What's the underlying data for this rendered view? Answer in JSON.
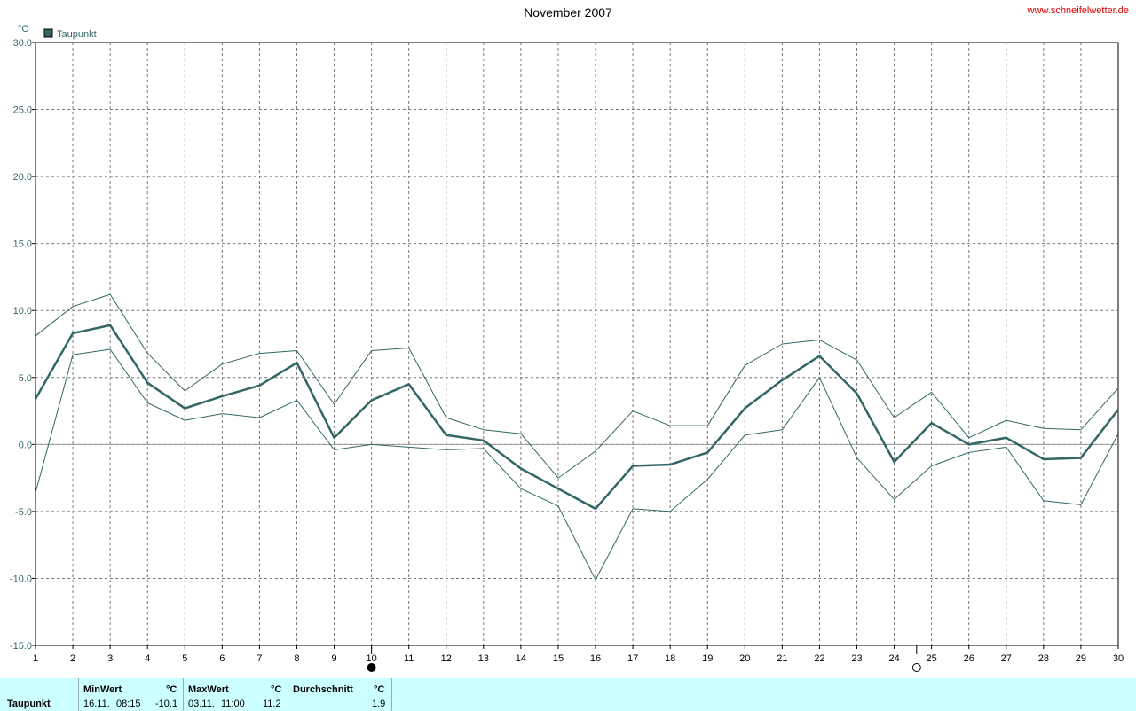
{
  "chart_data": {
    "type": "line",
    "title": "November 2007",
    "website": "www.schneifelwetter.de",
    "ylabel": "°C",
    "ylim": [
      -15,
      30
    ],
    "yticks": [
      "30.0",
      "25.0",
      "20.0",
      "15.0",
      "10.0",
      "5.0",
      "0.0",
      "-5.0",
      "-10.0",
      "-15.0"
    ],
    "ytick_values": [
      30,
      25,
      20,
      15,
      10,
      5,
      0,
      -5,
      -10,
      -15
    ],
    "x": [
      1,
      2,
      3,
      4,
      5,
      6,
      7,
      8,
      9,
      10,
      11,
      12,
      13,
      14,
      15,
      16,
      17,
      18,
      19,
      20,
      21,
      22,
      23,
      24,
      25,
      26,
      27,
      28,
      29,
      30
    ],
    "xticks": [
      "1",
      "2",
      "3",
      "4",
      "5",
      "6",
      "7",
      "8",
      "9",
      "10",
      "11",
      "12",
      "13",
      "14",
      "15",
      "16",
      "17",
      "18",
      "19",
      "20",
      "21",
      "22",
      "23",
      "24",
      "25",
      "26",
      "27",
      "28",
      "29",
      "30"
    ],
    "grid": true,
    "legend": "top-left",
    "series": [
      {
        "name": "Taupunkt",
        "color": "#336666",
        "role": "mean",
        "values": [
          3.4,
          8.3,
          8.9,
          4.6,
          2.7,
          3.6,
          4.4,
          6.1,
          0.5,
          3.3,
          4.5,
          0.7,
          0.3,
          -1.8,
          -3.3,
          -4.8,
          -1.6,
          -1.5,
          -0.6,
          2.7,
          4.8,
          6.6,
          3.8,
          -1.3,
          1.6,
          0.0,
          0.5,
          -1.1,
          -1.0,
          2.6
        ]
      },
      {
        "color": "#336666",
        "role": "max",
        "values": [
          8.1,
          10.3,
          11.2,
          6.8,
          4.0,
          6.0,
          6.8,
          7.0,
          3.0,
          7.0,
          7.2,
          2.0,
          1.1,
          0.8,
          -2.5,
          -0.5,
          2.5,
          1.4,
          1.4,
          5.9,
          7.5,
          7.8,
          6.3,
          2.0,
          3.9,
          0.5,
          1.8,
          1.2,
          1.1,
          4.2
        ]
      },
      {
        "color": "#336666",
        "role": "min",
        "values": [
          -3.6,
          6.7,
          7.1,
          3.1,
          1.8,
          2.3,
          2.0,
          3.3,
          -0.4,
          0.0,
          -0.2,
          -0.4,
          -0.3,
          -3.3,
          -4.6,
          -10.1,
          -4.8,
          -5.0,
          -2.6,
          0.7,
          1.1,
          5.0,
          -1.0,
          -4.1,
          -1.6,
          -0.6,
          -0.2,
          -4.2,
          -4.5,
          0.8
        ]
      }
    ],
    "moon_phases": [
      {
        "day": 10,
        "phase": "new-moon-icon"
      },
      {
        "day": 24.6,
        "phase": "full-moon-icon"
      }
    ]
  },
  "footer": {
    "row_label": "Taupunkt",
    "min": {
      "header": "MinWert",
      "unit": "°C",
      "date": "16.11.",
      "time": "08:15",
      "value": "-10.1"
    },
    "max": {
      "header": "MaxWert",
      "unit": "°C",
      "date": "03.11.",
      "time": "11:00",
      "value": "11.2"
    },
    "avg": {
      "header": "Durchschnitt",
      "unit": "°C",
      "value": "1.9"
    }
  }
}
